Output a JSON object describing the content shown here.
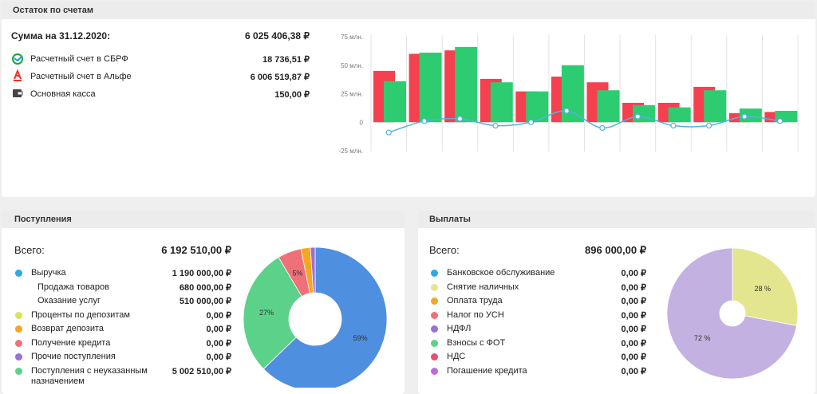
{
  "accounts": {
    "title": "Остаток по счетам",
    "total_label": "Сумма на 31.12.2020:",
    "total": "6 025 406,38 ₽",
    "items": [
      {
        "name": "Расчетный счет в СБРФ",
        "amount": "18 736,51 ₽"
      },
      {
        "name": "Расчетный счет в Альфе",
        "amount": "6 006 519,87 ₽"
      },
      {
        "name": "Основная касса",
        "amount": "150,00 ₽"
      }
    ]
  },
  "income": {
    "title": "Поступления",
    "total_label": "Всего:",
    "total": "6 192 510,00 ₽",
    "items": [
      {
        "name": "Выручка",
        "amount": "1 190 000,00 ₽",
        "color": "#2ea8e6"
      },
      {
        "name": "Продажа товаров",
        "amount": "680 000,00 ₽"
      },
      {
        "name": "Оказание услуг",
        "amount": "510 000,00 ₽"
      },
      {
        "name": "Проценты по депозитам",
        "amount": "0,00 ₽",
        "color": "#d9e35c"
      },
      {
        "name": "Возврат депозита",
        "amount": "0,00 ₽",
        "color": "#f5a623"
      },
      {
        "name": "Получение кредита",
        "amount": "0,00 ₽",
        "color": "#f0707a"
      },
      {
        "name": "Прочие поступления",
        "amount": "0,00 ₽",
        "color": "#9b6fd8"
      },
      {
        "name": "Поступления с неуказанным назначением",
        "amount": "5 002 510,00 ₽",
        "color": "#5cd18a"
      }
    ]
  },
  "payments": {
    "title": "Выплаты",
    "total_label": "Всего:",
    "total": "896 000,00 ₽",
    "items": [
      {
        "name": "Банковское обслуживание",
        "amount": "0,00 ₽",
        "color": "#2ea8e6"
      },
      {
        "name": "Снятие наличных",
        "amount": "0,00 ₽",
        "color": "#e3e68f"
      },
      {
        "name": "Оплата труда",
        "amount": "0,00 ₽",
        "color": "#f5a623"
      },
      {
        "name": "Налог по УСН",
        "amount": "0,00 ₽",
        "color": "#f0707a"
      },
      {
        "name": "НДФЛ",
        "amount": "0,00 ₽",
        "color": "#9b6fd8"
      },
      {
        "name": "Взносы с ФОТ",
        "amount": "0,00 ₽",
        "color": "#5cd18a"
      },
      {
        "name": "НДС",
        "amount": "0,00 ₽",
        "color": "#e8506e"
      },
      {
        "name": "Погашение кредита",
        "amount": "0,00 ₽",
        "color": "#c06ad8"
      }
    ]
  },
  "chart_data": [
    {
      "type": "bar",
      "categories": [
        null,
        null,
        null,
        null,
        null,
        null,
        null,
        null,
        null,
        null,
        null,
        null
      ],
      "series": [
        {
          "color": "#f4404f",
          "values": [
            45,
            60,
            63,
            38,
            27,
            40,
            35,
            17,
            17,
            31,
            8,
            9
          ]
        },
        {
          "color": "#2ecc71",
          "values": [
            36,
            61,
            66,
            35,
            27,
            50,
            28,
            15,
            13,
            28,
            12,
            10
          ]
        },
        {
          "type": "line",
          "color": "#4fb3e0",
          "values": [
            -9,
            1,
            3,
            -3,
            0,
            10,
            -5,
            5,
            -3,
            -3,
            5,
            1
          ]
        }
      ],
      "ylim": [
        -25,
        75
      ],
      "yticks": [
        {
          "value": 75,
          "label": "75 млн."
        },
        {
          "value": 50,
          "label": "50 млн."
        },
        {
          "value": 25,
          "label": "25 млн."
        },
        0,
        {
          "value": -25,
          "label": "-25 млн."
        }
      ],
      "grid": true
    },
    {
      "type": "pie",
      "values": [
        59,
        27,
        5,
        2,
        1
      ],
      "colors": [
        "#4e8fe0",
        "#5cd18a",
        "#f0707a",
        "#f5a623",
        "#9b6fd8"
      ],
      "value_labels": [
        "59%",
        "27%",
        "5%",
        null,
        null
      ]
    },
    {
      "type": "pie",
      "values": [
        28,
        72
      ],
      "colors": [
        "#e3e68f",
        "#c3b1e1"
      ],
      "value_labels": [
        "28 %",
        "72 %"
      ]
    }
  ]
}
